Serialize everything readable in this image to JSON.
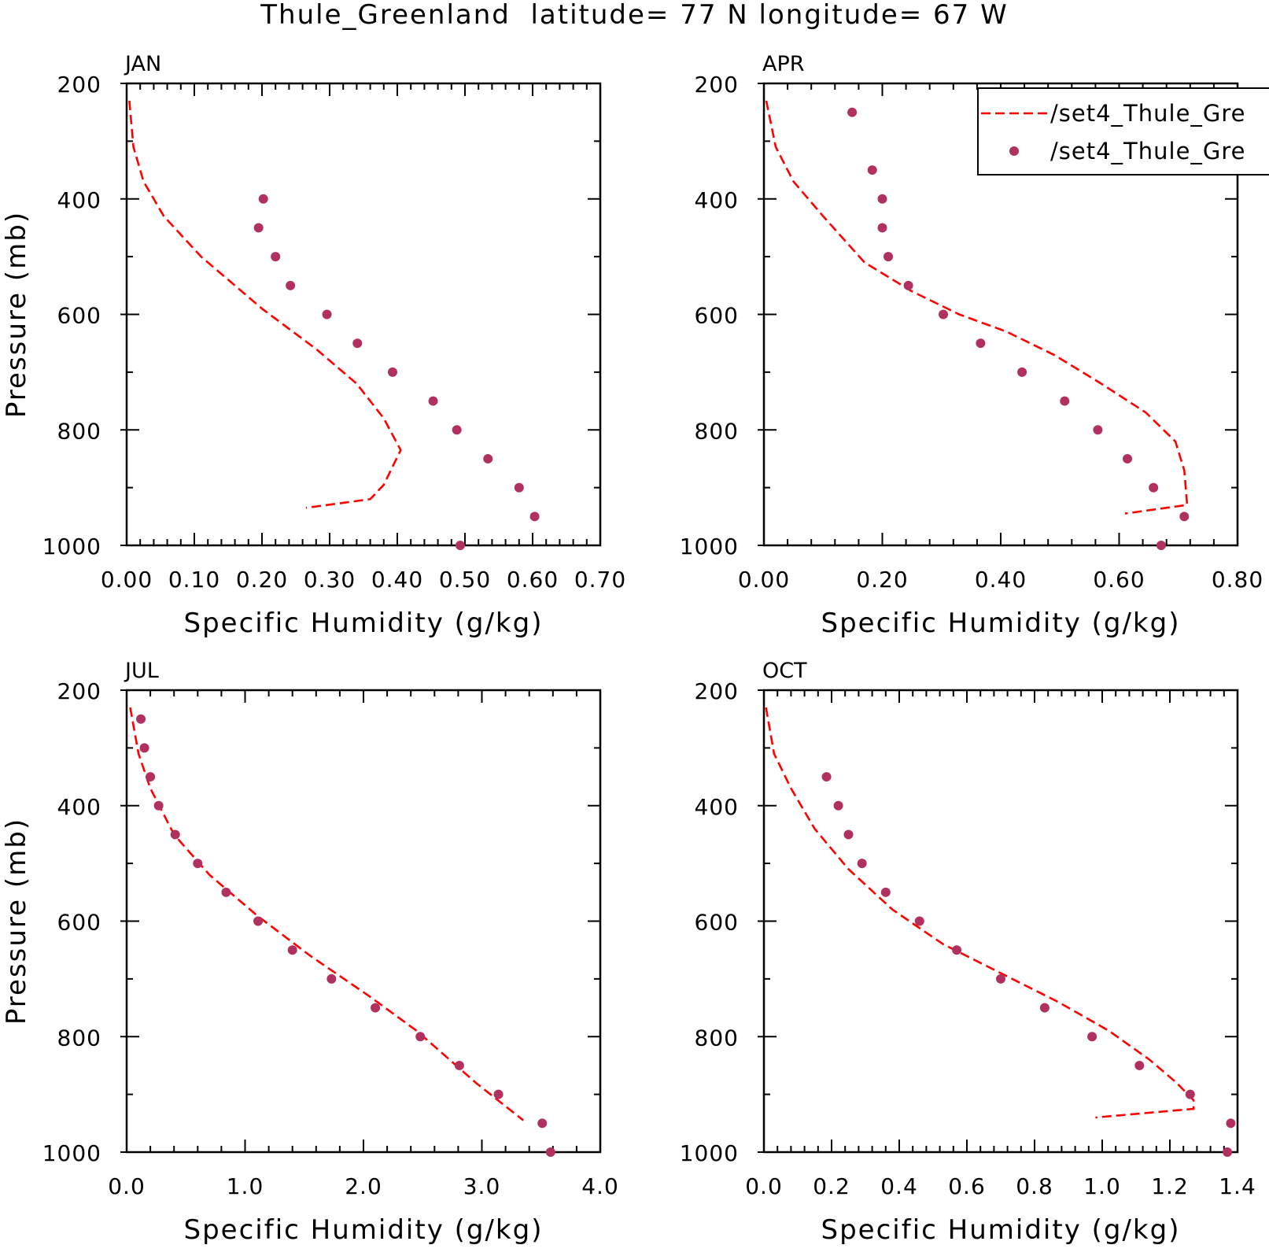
{
  "title": "Thule_Greenland  latitude= 77 N longitude= 67 W",
  "chart_data": [
    {
      "type": "line",
      "panel_label": "JAN",
      "xlabel": "Specific Humidity (g/kg)",
      "ylabel": "Pressure (mb)",
      "xlim": [
        0.0,
        0.7
      ],
      "ylim": [
        200,
        1000
      ],
      "y_inverted": false,
      "xticks": [
        0.0,
        0.1,
        0.2,
        0.3,
        0.4,
        0.5,
        0.6,
        0.7
      ],
      "xtick_labels": [
        "0.00",
        "0.10",
        "0.20",
        "0.30",
        "0.40",
        "0.50",
        "0.60",
        "0.70"
      ],
      "yticks": [
        200,
        400,
        600,
        800,
        1000
      ],
      "ytick_labels": [
        "200",
        "400",
        "600",
        "800",
        "1000"
      ],
      "legend": null,
      "series": [
        {
          "name": "/set4_Thule_Gre",
          "style": "dashed",
          "color": "#ff0000",
          "x": [
            0.004,
            0.01,
            0.025,
            0.055,
            0.11,
            0.2,
            0.28,
            0.34,
            0.38,
            0.405,
            0.38,
            0.36,
            0.265
          ],
          "y": [
            230,
            310,
            370,
            430,
            500,
            590,
            660,
            720,
            780,
            835,
            895,
            920,
            935
          ]
        },
        {
          "name": "/set4_Thule_Gre",
          "style": "markers",
          "color": "#b03060",
          "x": [
            0.202,
            0.195,
            0.22,
            0.242,
            0.296,
            0.341,
            0.393,
            0.453,
            0.488,
            0.534,
            0.58,
            0.603,
            0.493
          ],
          "y": [
            400,
            450,
            500,
            550,
            600,
            650,
            700,
            750,
            800,
            850,
            900,
            950,
            1000
          ]
        }
      ]
    },
    {
      "type": "line",
      "panel_label": "APR",
      "xlabel": "Specific Humidity (g/kg)",
      "ylabel": "",
      "xlim": [
        0.0,
        0.8
      ],
      "ylim": [
        200,
        1000
      ],
      "xticks": [
        0.0,
        0.2,
        0.4,
        0.6,
        0.8
      ],
      "xtick_labels": [
        "0.00",
        "0.20",
        "0.40",
        "0.60",
        "0.80"
      ],
      "yticks": [
        200,
        400,
        600,
        800,
        1000
      ],
      "ytick_labels": [
        "200",
        "400",
        "600",
        "800",
        "1000"
      ],
      "legend": {
        "placement": "top-right",
        "entries": [
          "/set4_Thule_Gre",
          "/set4_Thule_Gre"
        ]
      },
      "series": [
        {
          "name": "/set4_Thule_Gre",
          "style": "dashed",
          "color": "#ff0000",
          "x": [
            0.004,
            0.02,
            0.05,
            0.1,
            0.17,
            0.25,
            0.33,
            0.41,
            0.49,
            0.57,
            0.645,
            0.695,
            0.71,
            0.715,
            0.61
          ],
          "y": [
            230,
            310,
            370,
            430,
            510,
            560,
            600,
            630,
            670,
            720,
            770,
            820,
            870,
            930,
            945
          ]
        },
        {
          "name": "/set4_Thule_Gre",
          "style": "markers",
          "color": "#b03060",
          "x": [
            0.149,
            0.183,
            0.2,
            0.2,
            0.21,
            0.244,
            0.303,
            0.366,
            0.436,
            0.508,
            0.564,
            0.614,
            0.658,
            0.71,
            0.671
          ],
          "y": [
            250,
            350,
            400,
            450,
            500,
            550,
            600,
            650,
            700,
            750,
            800,
            850,
            900,
            950,
            1000
          ]
        }
      ]
    },
    {
      "type": "line",
      "panel_label": "JUL",
      "xlabel": "Specific Humidity (g/kg)",
      "ylabel": "Pressure (mb)",
      "xlim": [
        0.0,
        4.0
      ],
      "ylim": [
        200,
        1000
      ],
      "xticks": [
        0.0,
        1.0,
        2.0,
        3.0,
        4.0
      ],
      "xtick_labels": [
        "0.0",
        "1.0",
        "2.0",
        "3.0",
        "4.0"
      ],
      "yticks": [
        200,
        400,
        600,
        800,
        1000
      ],
      "ytick_labels": [
        "200",
        "400",
        "600",
        "800",
        "1000"
      ],
      "legend": null,
      "series": [
        {
          "name": "/set4_Thule_Gre",
          "style": "dashed",
          "color": "#ff0000",
          "x": [
            0.03,
            0.1,
            0.2,
            0.4,
            0.7,
            1.1,
            1.55,
            2.05,
            2.45,
            2.95,
            3.35
          ],
          "y": [
            230,
            310,
            370,
            450,
            520,
            590,
            660,
            730,
            790,
            880,
            945
          ]
        },
        {
          "name": "/set4_Thule_Gre",
          "style": "markers",
          "color": "#b03060",
          "x": [
            0.12,
            0.15,
            0.2,
            0.27,
            0.41,
            0.6,
            0.84,
            1.11,
            1.4,
            1.73,
            2.1,
            2.48,
            2.81,
            3.14,
            3.51,
            3.58
          ],
          "y": [
            250,
            300,
            350,
            400,
            450,
            500,
            550,
            600,
            650,
            700,
            750,
            800,
            850,
            900,
            950,
            1000
          ]
        }
      ]
    },
    {
      "type": "line",
      "panel_label": "OCT",
      "xlabel": "Specific Humidity (g/kg)",
      "ylabel": "",
      "xlim": [
        0.0,
        1.4
      ],
      "ylim": [
        200,
        1000
      ],
      "xticks": [
        0.0,
        0.2,
        0.4,
        0.6,
        0.8,
        1.0,
        1.2,
        1.4
      ],
      "xtick_labels": [
        "0.0",
        "0.2",
        "0.4",
        "0.6",
        "0.8",
        "1.0",
        "1.2",
        "1.4"
      ],
      "yticks": [
        200,
        400,
        600,
        800,
        1000
      ],
      "ytick_labels": [
        "200",
        "400",
        "600",
        "800",
        "1000"
      ],
      "legend": null,
      "series": [
        {
          "name": "/set4_Thule_Gre",
          "style": "dashed",
          "color": "#ff0000",
          "x": [
            0.006,
            0.03,
            0.08,
            0.15,
            0.25,
            0.38,
            0.53,
            0.7,
            0.87,
            1.02,
            1.14,
            1.22,
            1.27,
            1.27,
            0.98
          ],
          "y": [
            230,
            310,
            370,
            440,
            510,
            580,
            640,
            690,
            740,
            790,
            840,
            880,
            910,
            925,
            940
          ]
        },
        {
          "name": "/set4_Thule_Gre",
          "style": "markers",
          "color": "#b03060",
          "x": [
            0.185,
            0.22,
            0.25,
            0.29,
            0.36,
            0.46,
            0.57,
            0.7,
            0.83,
            0.97,
            1.11,
            1.26,
            1.38,
            1.37
          ],
          "y": [
            350,
            400,
            450,
            500,
            550,
            600,
            650,
            700,
            750,
            800,
            850,
            900,
            950,
            1000
          ]
        }
      ]
    }
  ]
}
